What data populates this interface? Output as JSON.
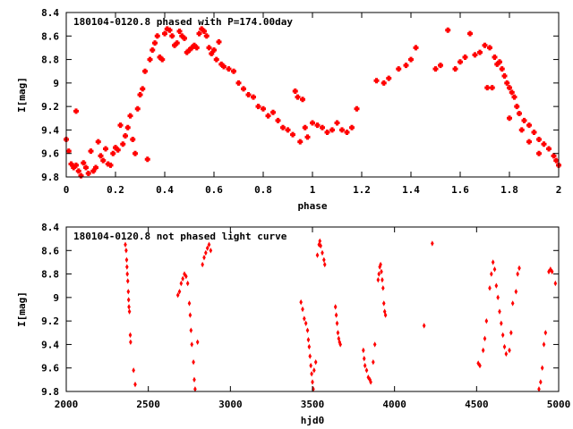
{
  "chart_data": [
    {
      "type": "scatter",
      "title": "180104-0120.8 phased with P=174.00day",
      "xlabel": "phase",
      "ylabel": "I[mag]",
      "xlim": [
        0,
        2
      ],
      "ylim": [
        8.4,
        9.8
      ],
      "y_reversed": true,
      "xticks": [
        "0",
        "0.2",
        "0.4",
        "0.6",
        "0.8",
        "1",
        "1.2",
        "1.4",
        "1.6",
        "1.8",
        "2"
      ],
      "xtick_values": [
        0,
        0.2,
        0.4,
        0.6,
        0.8,
        1.0,
        1.2,
        1.4,
        1.6,
        1.8,
        2.0
      ],
      "yticks": [
        "8.4",
        "8.6",
        "8.8",
        "9",
        "9.2",
        "9.4",
        "9.6",
        "9.8"
      ],
      "ytick_values": [
        8.4,
        8.6,
        8.8,
        9.0,
        9.2,
        9.4,
        9.6,
        9.8
      ],
      "grid": false,
      "marker_color": "#ff0000",
      "marker": "cross",
      "series": [
        {
          "points": [
            [
              0.0,
              9.48
            ],
            [
              0.01,
              9.58
            ],
            [
              0.02,
              9.69
            ],
            [
              0.03,
              9.72
            ],
            [
              0.04,
              9.7
            ],
            [
              0.05,
              9.75
            ],
            [
              0.04,
              9.24
            ],
            [
              0.06,
              9.79
            ],
            [
              0.07,
              9.68
            ],
            [
              0.08,
              9.72
            ],
            [
              0.09,
              9.77
            ],
            [
              0.1,
              9.58
            ],
            [
              0.11,
              9.75
            ],
            [
              0.12,
              9.72
            ],
            [
              0.13,
              9.5
            ],
            [
              0.14,
              9.62
            ],
            [
              0.15,
              9.66
            ],
            [
              0.16,
              9.56
            ],
            [
              0.17,
              9.69
            ],
            [
              0.18,
              9.7
            ],
            [
              0.19,
              9.6
            ],
            [
              0.2,
              9.55
            ],
            [
              0.21,
              9.57
            ],
            [
              0.22,
              9.36
            ],
            [
              0.23,
              9.52
            ],
            [
              0.24,
              9.45
            ],
            [
              0.25,
              9.38
            ],
            [
              0.26,
              9.28
            ],
            [
              0.27,
              9.48
            ],
            [
              0.28,
              9.6
            ],
            [
              0.29,
              9.22
            ],
            [
              0.3,
              9.1
            ],
            [
              0.31,
              9.05
            ],
            [
              0.32,
              8.9
            ],
            [
              0.33,
              9.65
            ],
            [
              0.34,
              8.8
            ],
            [
              0.35,
              8.72
            ],
            [
              0.36,
              8.66
            ],
            [
              0.37,
              8.6
            ],
            [
              0.38,
              8.78
            ],
            [
              0.39,
              8.8
            ],
            [
              0.4,
              8.58
            ],
            [
              0.41,
              8.54
            ],
            [
              0.42,
              8.55
            ],
            [
              0.43,
              8.6
            ],
            [
              0.44,
              8.68
            ],
            [
              0.45,
              8.66
            ],
            [
              0.46,
              8.56
            ],
            [
              0.47,
              8.6
            ],
            [
              0.48,
              8.62
            ],
            [
              0.49,
              8.74
            ],
            [
              0.5,
              8.72
            ],
            [
              0.51,
              8.7
            ],
            [
              0.52,
              8.68
            ],
            [
              0.53,
              8.7
            ],
            [
              0.54,
              8.58
            ],
            [
              0.55,
              8.54
            ],
            [
              0.56,
              8.56
            ],
            [
              0.57,
              8.6
            ],
            [
              0.58,
              8.7
            ],
            [
              0.59,
              8.75
            ],
            [
              0.6,
              8.72
            ],
            [
              0.61,
              8.8
            ],
            [
              0.62,
              8.65
            ],
            [
              0.63,
              8.84
            ],
            [
              0.64,
              8.86
            ],
            [
              0.66,
              8.88
            ],
            [
              0.68,
              8.9
            ],
            [
              0.7,
              9.0
            ],
            [
              0.72,
              9.05
            ],
            [
              0.74,
              9.1
            ],
            [
              0.76,
              9.12
            ],
            [
              0.78,
              9.2
            ],
            [
              0.8,
              9.22
            ],
            [
              0.82,
              9.28
            ],
            [
              0.84,
              9.25
            ],
            [
              0.86,
              9.32
            ],
            [
              0.88,
              9.38
            ],
            [
              0.9,
              9.4
            ],
            [
              0.92,
              9.44
            ],
            [
              0.93,
              9.07
            ],
            [
              0.94,
              9.12
            ],
            [
              0.95,
              9.5
            ],
            [
              0.96,
              9.14
            ],
            [
              0.97,
              9.38
            ],
            [
              0.98,
              9.46
            ],
            [
              1.0,
              9.34
            ],
            [
              1.02,
              9.36
            ],
            [
              1.04,
              9.38
            ],
            [
              1.06,
              9.42
            ],
            [
              1.08,
              9.4
            ],
            [
              1.1,
              9.34
            ],
            [
              1.12,
              9.4
            ],
            [
              1.14,
              9.42
            ],
            [
              1.16,
              9.38
            ],
            [
              1.18,
              9.22
            ],
            [
              1.26,
              8.98
            ],
            [
              1.29,
              9.0
            ],
            [
              1.31,
              8.96
            ],
            [
              1.35,
              8.88
            ],
            [
              1.38,
              8.85
            ],
            [
              1.4,
              8.8
            ],
            [
              1.42,
              8.7
            ],
            [
              1.5,
              8.88
            ],
            [
              1.52,
              8.85
            ],
            [
              1.55,
              8.55
            ],
            [
              1.58,
              8.88
            ],
            [
              1.6,
              8.82
            ],
            [
              1.62,
              8.78
            ],
            [
              1.64,
              8.58
            ],
            [
              1.66,
              8.76
            ],
            [
              1.68,
              8.74
            ],
            [
              1.7,
              8.68
            ],
            [
              1.72,
              8.7
            ],
            [
              1.74,
              8.78
            ],
            [
              1.75,
              8.84
            ],
            [
              1.76,
              8.82
            ],
            [
              1.77,
              8.88
            ],
            [
              1.78,
              8.94
            ],
            [
              1.79,
              9.0
            ],
            [
              1.8,
              9.04
            ],
            [
              1.81,
              9.08
            ],
            [
              1.82,
              9.12
            ],
            [
              1.83,
              9.2
            ],
            [
              1.84,
              9.26
            ],
            [
              1.86,
              9.32
            ],
            [
              1.88,
              9.36
            ],
            [
              1.9,
              9.42
            ],
            [
              1.92,
              9.48
            ],
            [
              1.94,
              9.52
            ],
            [
              1.96,
              9.56
            ],
            [
              1.98,
              9.62
            ],
            [
              1.99,
              9.66
            ],
            [
              2.0,
              9.7
            ],
            [
              1.71,
              9.04
            ],
            [
              1.73,
              9.04
            ],
            [
              1.8,
              9.3
            ],
            [
              1.85,
              9.4
            ],
            [
              1.88,
              9.5
            ],
            [
              1.92,
              9.6
            ]
          ]
        }
      ]
    },
    {
      "type": "scatter",
      "title": "180104-0120.8 not phased light curve",
      "xlabel": "hjd0",
      "ylabel": "I[mag]",
      "xlim": [
        2000,
        5000
      ],
      "ylim": [
        8.4,
        9.8
      ],
      "y_reversed": true,
      "xticks": [
        "2000",
        "2500",
        "3000",
        "3500",
        "4000",
        "4500",
        "5000"
      ],
      "xtick_values": [
        2000,
        2500,
        3000,
        3500,
        4000,
        4500,
        5000
      ],
      "yticks": [
        "8.4",
        "8.6",
        "8.8",
        "9",
        "9.2",
        "9.4",
        "9.6",
        "9.8"
      ],
      "ytick_values": [
        8.4,
        8.6,
        8.8,
        9.0,
        9.2,
        9.4,
        9.6,
        9.8
      ],
      "grid": false,
      "marker_color": "#ff0000",
      "marker": "diamond",
      "series": [
        {
          "points": [
            [
              2360,
              8.55
            ],
            [
              2365,
              8.6
            ],
            [
              2368,
              8.68
            ],
            [
              2370,
              8.74
            ],
            [
              2372,
              8.8
            ],
            [
              2375,
              8.86
            ],
            [
              2378,
              8.95
            ],
            [
              2380,
              9.02
            ],
            [
              2382,
              9.08
            ],
            [
              2385,
              9.12
            ],
            [
              2390,
              9.32
            ],
            [
              2392,
              9.38
            ],
            [
              2410,
              9.62
            ],
            [
              2420,
              9.74
            ],
            [
              2680,
              8.98
            ],
            [
              2690,
              8.95
            ],
            [
              2700,
              8.88
            ],
            [
              2710,
              8.84
            ],
            [
              2720,
              8.8
            ],
            [
              2730,
              8.82
            ],
            [
              2740,
              8.88
            ],
            [
              2750,
              9.05
            ],
            [
              2755,
              9.15
            ],
            [
              2760,
              9.28
            ],
            [
              2765,
              9.4
            ],
            [
              2775,
              9.55
            ],
            [
              2780,
              9.7
            ],
            [
              2785,
              9.78
            ],
            [
              2800,
              9.38
            ],
            [
              2830,
              8.72
            ],
            [
              2840,
              8.66
            ],
            [
              2850,
              8.62
            ],
            [
              2860,
              8.58
            ],
            [
              2870,
              8.55
            ],
            [
              2880,
              8.6
            ],
            [
              3430,
              9.04
            ],
            [
              3440,
              9.1
            ],
            [
              3450,
              9.18
            ],
            [
              3460,
              9.22
            ],
            [
              3470,
              9.28
            ],
            [
              3475,
              9.36
            ],
            [
              3480,
              9.42
            ],
            [
              3485,
              9.5
            ],
            [
              3490,
              9.58
            ],
            [
              3495,
              9.65
            ],
            [
              3500,
              9.72
            ],
            [
              3505,
              9.78
            ],
            [
              3510,
              9.62
            ],
            [
              3520,
              9.55
            ],
            [
              3530,
              8.64
            ],
            [
              3540,
              8.55
            ],
            [
              3545,
              8.52
            ],
            [
              3550,
              8.56
            ],
            [
              3560,
              8.62
            ],
            [
              3570,
              8.68
            ],
            [
              3575,
              8.72
            ],
            [
              3640,
              9.08
            ],
            [
              3645,
              9.15
            ],
            [
              3650,
              9.22
            ],
            [
              3655,
              9.3
            ],
            [
              3660,
              9.35
            ],
            [
              3665,
              9.38
            ],
            [
              3670,
              9.4
            ],
            [
              3810,
              9.45
            ],
            [
              3815,
              9.52
            ],
            [
              3820,
              9.58
            ],
            [
              3830,
              9.62
            ],
            [
              3840,
              9.68
            ],
            [
              3850,
              9.7
            ],
            [
              3855,
              9.72
            ],
            [
              3870,
              9.55
            ],
            [
              3880,
              9.4
            ],
            [
              3900,
              8.85
            ],
            [
              3905,
              8.8
            ],
            [
              3910,
              8.74
            ],
            [
              3915,
              8.72
            ],
            [
              3920,
              8.78
            ],
            [
              3925,
              8.85
            ],
            [
              3930,
              8.92
            ],
            [
              3935,
              9.05
            ],
            [
              3940,
              9.12
            ],
            [
              3945,
              9.15
            ],
            [
              4180,
              9.24
            ],
            [
              4230,
              8.54
            ],
            [
              4510,
              9.56
            ],
            [
              4520,
              9.58
            ],
            [
              4540,
              9.45
            ],
            [
              4550,
              9.35
            ],
            [
              4560,
              9.2
            ],
            [
              4580,
              8.92
            ],
            [
              4590,
              8.8
            ],
            [
              4600,
              8.7
            ],
            [
              4610,
              8.76
            ],
            [
              4620,
              8.9
            ],
            [
              4630,
              9.0
            ],
            [
              4640,
              9.12
            ],
            [
              4650,
              9.22
            ],
            [
              4660,
              9.32
            ],
            [
              4670,
              9.42
            ],
            [
              4680,
              9.48
            ],
            [
              4700,
              9.45
            ],
            [
              4710,
              9.3
            ],
            [
              4720,
              9.05
            ],
            [
              4740,
              8.95
            ],
            [
              4750,
              8.8
            ],
            [
              4760,
              8.75
            ],
            [
              4880,
              9.78
            ],
            [
              4890,
              9.72
            ],
            [
              4900,
              9.6
            ],
            [
              4910,
              9.4
            ],
            [
              4920,
              9.3
            ],
            [
              4940,
              8.78
            ],
            [
              4950,
              8.76
            ],
            [
              4960,
              8.78
            ],
            [
              4980,
              8.88
            ]
          ]
        }
      ]
    }
  ]
}
